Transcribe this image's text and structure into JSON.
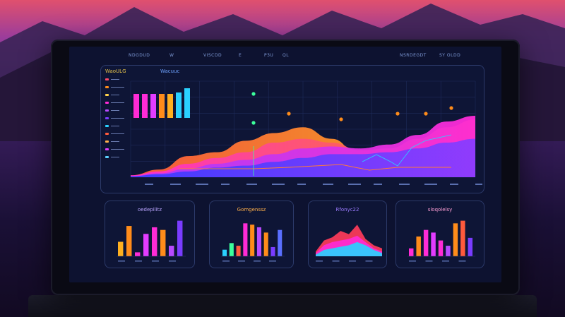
{
  "colors": {
    "accent_orange": "#ff8c1a",
    "accent_magenta": "#ff2bd6",
    "accent_purple": "#7a3cff",
    "accent_cyan": "#2ad1ff",
    "panel_bg": "#0e1536",
    "panel_border": "#2c3a6a"
  },
  "topbar": {
    "items": [
      "NDGDUD",
      "W",
      "VISCDD",
      "E",
      "P3U",
      "QL",
      "NSRDEGDT",
      "SY OLDD"
    ]
  },
  "main_panel": {
    "title": "WaoULG",
    "subtitle": "Wacuuc",
    "legend_count": 11
  },
  "mini_panels": [
    {
      "title": "oedepilitz",
      "title_color": "#b9a4ff"
    },
    {
      "title": "Gomgenssz",
      "title_color": "#ffb04a"
    },
    {
      "title": "Rfonyc22",
      "title_color": "#9b7bff"
    },
    {
      "title": "sloqolelsy",
      "title_color": "#ff9fd6"
    }
  ],
  "chart_data": [
    {
      "type": "area",
      "title": "",
      "x": [
        0,
        1,
        2,
        3,
        4,
        5,
        6,
        7,
        8,
        9,
        10,
        11,
        12
      ],
      "series": [
        {
          "values": [
            2,
            8,
            22,
            26,
            38,
            46,
            52,
            40,
            22,
            16,
            20,
            30,
            36
          ]
        },
        {
          "values": [
            2,
            6,
            14,
            20,
            26,
            36,
            40,
            36,
            28,
            30,
            40,
            52,
            60
          ]
        },
        {
          "values": [
            1,
            4,
            9,
            14,
            18,
            24,
            30,
            32,
            30,
            34,
            44,
            58,
            64
          ]
        },
        {
          "values": [
            1,
            3,
            6,
            10,
            12,
            16,
            20,
            24,
            24,
            26,
            30,
            36,
            40
          ]
        }
      ],
      "inset_bars": [
        34,
        34,
        34,
        34,
        34,
        36,
        42
      ],
      "ylim": [
        0,
        100
      ]
    },
    {
      "type": "bar",
      "values": [
        22,
        46,
        6,
        34,
        44,
        40,
        16,
        54
      ],
      "ylim": [
        0,
        60
      ]
    },
    {
      "type": "bar",
      "values": [
        10,
        20,
        16,
        50,
        48,
        44,
        36,
        14,
        40
      ],
      "ylim": [
        0,
        60
      ]
    },
    {
      "type": "area",
      "series": [
        {
          "values": [
            6,
            20,
            24,
            32,
            28,
            40,
            22,
            14,
            10
          ]
        },
        {
          "values": [
            4,
            14,
            18,
            20,
            22,
            26,
            18,
            10,
            6
          ]
        },
        {
          "values": [
            2,
            8,
            10,
            12,
            14,
            18,
            14,
            8,
            4
          ]
        }
      ],
      "ylim": [
        0,
        50
      ]
    },
    {
      "type": "bar",
      "values": [
        12,
        30,
        40,
        36,
        24,
        16,
        50,
        54,
        28
      ],
      "ylim": [
        0,
        60
      ]
    }
  ]
}
